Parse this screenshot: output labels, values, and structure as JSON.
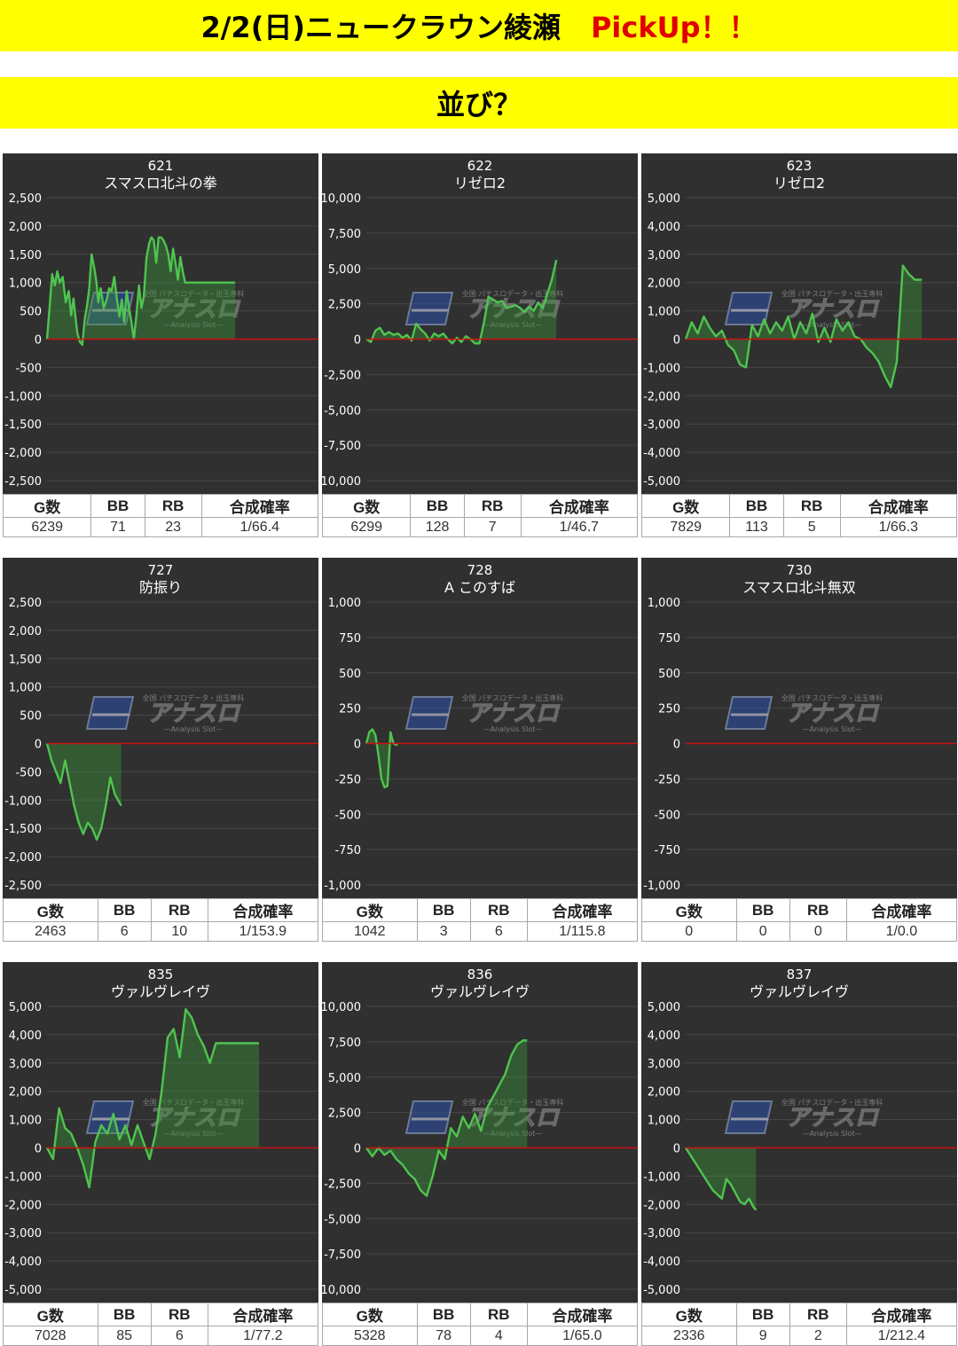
{
  "header": {
    "title": "2/2(日)ニュークラウン綾瀬",
    "pickup": "PickUp！！",
    "subtitle": "並び？"
  },
  "stat_headers": [
    "G数",
    "BB",
    "RB",
    "合成確率"
  ],
  "watermark": {
    "brand": "アナスロ",
    "tagline": "—Analysis Slot—",
    "top_text": "全国 パチスロデータ・出玉専科"
  },
  "colors": {
    "banner": "#ffff00",
    "pickup": "#e00000",
    "panel_bg": "#303030",
    "line": "#4fc44f",
    "fill": "rgba(60,150,60,0.42)",
    "zero_line": "#cc1111"
  },
  "chart_data": [
    {
      "type": "area",
      "machine_no": "621",
      "name": "スマスロ北斗の拳",
      "ylim": [
        -2500,
        2500
      ],
      "yticks": [
        2500,
        2000,
        1500,
        1000,
        500,
        0,
        -500,
        -1000,
        -1500,
        -2000,
        -2500
      ],
      "x": [
        0,
        90,
        170,
        260,
        340,
        420,
        520,
        620,
        720,
        800,
        880,
        940,
        1010,
        1090,
        1170,
        1250,
        1330,
        1400,
        1480,
        1570,
        1640,
        1700,
        1780,
        1880,
        1980,
        2060,
        2140,
        2230,
        2320,
        2400,
        2480,
        2560,
        2640,
        2720,
        2800,
        2880,
        2960,
        3050,
        3130,
        3210,
        3300,
        3390,
        3460,
        3540,
        3620,
        3700,
        3780,
        3860,
        3940,
        4020,
        4100,
        4180,
        4260,
        4340,
        4420,
        4500,
        4580,
        4660,
        4740,
        4820,
        4900,
        4980,
        5060,
        5140,
        5220,
        5300,
        5380,
        5460,
        5540,
        5620,
        5700,
        5780,
        5860,
        5940,
        6020,
        6100,
        6180,
        6239
      ],
      "y": [
        0,
        600,
        1150,
        950,
        1200,
        1000,
        1100,
        650,
        850,
        420,
        720,
        400,
        100,
        -50,
        -100,
        350,
        600,
        900,
        1500,
        1250,
        1000,
        650,
        900,
        550,
        700,
        900,
        850,
        1100,
        700,
        400,
        700,
        300,
        850,
        550,
        300,
        0,
        400,
        950,
        550,
        750,
        1450,
        1700,
        1800,
        1750,
        1350,
        1800,
        1800,
        1750,
        1650,
        1500,
        1200,
        1600,
        1350,
        1050,
        1450,
        1200,
        1000,
        1000,
        1000,
        1000,
        1000,
        1000,
        1000,
        1000,
        1000,
        1000,
        1000,
        1000,
        1000,
        1000,
        1000,
        1000,
        1000,
        1000,
        1000,
        1000,
        1000,
        1000
      ],
      "stats": {
        "games": "6239",
        "bb": "71",
        "rb": "23",
        "prob": "1/66.4"
      }
    },
    {
      "type": "area",
      "machine_no": "622",
      "name": "リゼロ2",
      "ylim": [
        -10000,
        10000
      ],
      "yticks": [
        10000,
        7500,
        5000,
        2500,
        0,
        -2500,
        -5000,
        -7500,
        -10000
      ],
      "x": [
        0,
        150,
        300,
        450,
        600,
        750,
        900,
        1050,
        1200,
        1350,
        1500,
        1650,
        1800,
        1950,
        2100,
        2250,
        2400,
        2550,
        2700,
        2850,
        3000,
        3150,
        3300,
        3450,
        3600,
        3750,
        3900,
        4050,
        4200,
        4350,
        4500,
        4650,
        4800,
        4950,
        5100,
        5250,
        5400,
        5550,
        5700,
        5850,
        6000,
        6150,
        6299
      ],
      "y": [
        0,
        -200,
        600,
        800,
        300,
        500,
        300,
        400,
        100,
        300,
        -100,
        1100,
        700,
        400,
        -100,
        400,
        200,
        400,
        0,
        -300,
        100,
        -200,
        200,
        0,
        -300,
        -300,
        1200,
        3000,
        2800,
        2600,
        2700,
        2200,
        2300,
        2400,
        2200,
        1900,
        2300,
        2000,
        2600,
        2200,
        3200,
        4200,
        5600
      ],
      "stats": {
        "games": "6299",
        "bb": "128",
        "rb": "7",
        "prob": "1/46.7"
      }
    },
    {
      "type": "area",
      "machine_no": "623",
      "name": "リゼロ2",
      "ylim": [
        -5000,
        5000
      ],
      "yticks": [
        5000,
        4000,
        3000,
        2000,
        1000,
        0,
        -1000,
        -2000,
        -3000,
        -4000,
        -5000
      ],
      "x": [
        0,
        200,
        400,
        600,
        800,
        1000,
        1200,
        1400,
        1600,
        1800,
        2000,
        2200,
        2400,
        2600,
        2800,
        3000,
        3200,
        3400,
        3600,
        3800,
        4000,
        4200,
        4400,
        4600,
        4800,
        5000,
        5200,
        5400,
        5600,
        5800,
        6000,
        6200,
        6400,
        6600,
        6800,
        7000,
        7200,
        7400,
        7600,
        7829
      ],
      "y": [
        0,
        600,
        200,
        800,
        400,
        100,
        300,
        -200,
        -400,
        -900,
        -1000,
        500,
        100,
        700,
        200,
        600,
        300,
        800,
        0,
        600,
        200,
        900,
        -100,
        400,
        -100,
        700,
        300,
        600,
        100,
        0,
        -300,
        -500,
        -800,
        -1300,
        -1700,
        -800,
        2600,
        2300,
        2100,
        2100
      ],
      "stats": {
        "games": "7829",
        "bb": "113",
        "rb": "5",
        "prob": "1/66.3"
      }
    },
    {
      "type": "area",
      "machine_no": "727",
      "name": "防振り",
      "ylim": [
        -2500,
        2500
      ],
      "yticks": [
        2500,
        2000,
        1500,
        1000,
        500,
        0,
        -500,
        -1000,
        -1500,
        -2000,
        -2500
      ],
      "x": [
        0,
        150,
        300,
        450,
        600,
        750,
        900,
        1050,
        1200,
        1350,
        1500,
        1650,
        1800,
        1950,
        2100,
        2250,
        2463
      ],
      "y": [
        0,
        -300,
        -500,
        -700,
        -300,
        -700,
        -1100,
        -1400,
        -1600,
        -1400,
        -1500,
        -1700,
        -1500,
        -1100,
        -600,
        -900,
        -1100
      ],
      "stats": {
        "games": "2463",
        "bb": "6",
        "rb": "10",
        "prob": "1/153.9"
      }
    },
    {
      "type": "area",
      "machine_no": "728",
      "name": "A このすば",
      "ylim": [
        -1000,
        1000
      ],
      "yticks": [
        1000,
        750,
        500,
        250,
        0,
        -250,
        -500,
        -750,
        -1000
      ],
      "x": [
        0,
        100,
        200,
        300,
        400,
        500,
        600,
        700,
        800,
        900,
        1000,
        1042
      ],
      "y": [
        0,
        80,
        100,
        60,
        -80,
        -250,
        -310,
        -300,
        80,
        0,
        -10,
        -10
      ],
      "stats": {
        "games": "1042",
        "bb": "3",
        "rb": "6",
        "prob": "1/115.8"
      }
    },
    {
      "type": "area",
      "machine_no": "730",
      "name": "スマスロ北斗無双",
      "ylim": [
        -1000,
        1000
      ],
      "yticks": [
        1000,
        750,
        500,
        250,
        0,
        -250,
        -500,
        -750,
        -1000
      ],
      "x": [],
      "y": [],
      "stats": {
        "games": "0",
        "bb": "0",
        "rb": "0",
        "prob": "1/0.0"
      }
    },
    {
      "type": "area",
      "machine_no": "835",
      "name": "ヴァルヴレイヴ",
      "ylim": [
        -5000,
        5000
      ],
      "yticks": [
        5000,
        4000,
        3000,
        2000,
        1000,
        0,
        -1000,
        -2000,
        -3000,
        -4000,
        -5000
      ],
      "x": [
        0,
        200,
        400,
        600,
        800,
        1000,
        1200,
        1400,
        1600,
        1800,
        2000,
        2200,
        2400,
        2600,
        2800,
        3000,
        3200,
        3400,
        3600,
        3800,
        4000,
        4200,
        4400,
        4600,
        4800,
        5000,
        5200,
        5400,
        5600,
        5800,
        6000,
        6200,
        6400,
        6600,
        6800,
        7028
      ],
      "y": [
        0,
        -400,
        1400,
        700,
        500,
        0,
        -600,
        -1400,
        200,
        800,
        500,
        1200,
        300,
        800,
        100,
        800,
        200,
        -400,
        500,
        2000,
        3900,
        4200,
        3200,
        4900,
        4600,
        4000,
        3600,
        3000,
        3700,
        3700,
        3700,
        3700,
        3700,
        3700,
        3700,
        3700
      ],
      "stats": {
        "games": "7028",
        "bb": "85",
        "rb": "6",
        "prob": "1/77.2"
      }
    },
    {
      "type": "area",
      "machine_no": "836",
      "name": "ヴァルヴレイヴ",
      "ylim": [
        -10000,
        10000
      ],
      "yticks": [
        10000,
        7500,
        5000,
        2500,
        0,
        -2500,
        -5000,
        -7500,
        -10000
      ],
      "x": [
        0,
        200,
        400,
        600,
        800,
        1000,
        1200,
        1400,
        1600,
        1800,
        2000,
        2200,
        2400,
        2600,
        2800,
        3000,
        3200,
        3400,
        3600,
        3800,
        4000,
        4200,
        4400,
        4600,
        4800,
        5000,
        5200,
        5328
      ],
      "y": [
        0,
        -600,
        0,
        -500,
        -200,
        -800,
        -1200,
        -1800,
        -2200,
        -3000,
        -3400,
        -2000,
        -200,
        -800,
        1400,
        800,
        2200,
        1400,
        2400,
        1200,
        2800,
        3600,
        4400,
        5200,
        6500,
        7300,
        7600,
        7600
      ],
      "stats": {
        "games": "5328",
        "bb": "78",
        "rb": "4",
        "prob": "1/65.0"
      }
    },
    {
      "type": "area",
      "machine_no": "837",
      "name": "ヴァルヴレイヴ",
      "ylim": [
        -5000,
        5000
      ],
      "yticks": [
        5000,
        4000,
        3000,
        2000,
        1000,
        0,
        -1000,
        -2000,
        -3000,
        -4000,
        -5000
      ],
      "x": [
        0,
        300,
        600,
        900,
        1000,
        1200,
        1350,
        1500,
        1650,
        1800,
        1950,
        2100,
        2250,
        2336
      ],
      "y": [
        0,
        -500,
        -1000,
        -1500,
        -1600,
        -1800,
        -1100,
        -1300,
        -1600,
        -1900,
        -2000,
        -1800,
        -2100,
        -2200
      ],
      "stats": {
        "games": "2336",
        "bb": "9",
        "rb": "2",
        "prob": "1/212.4"
      }
    }
  ]
}
